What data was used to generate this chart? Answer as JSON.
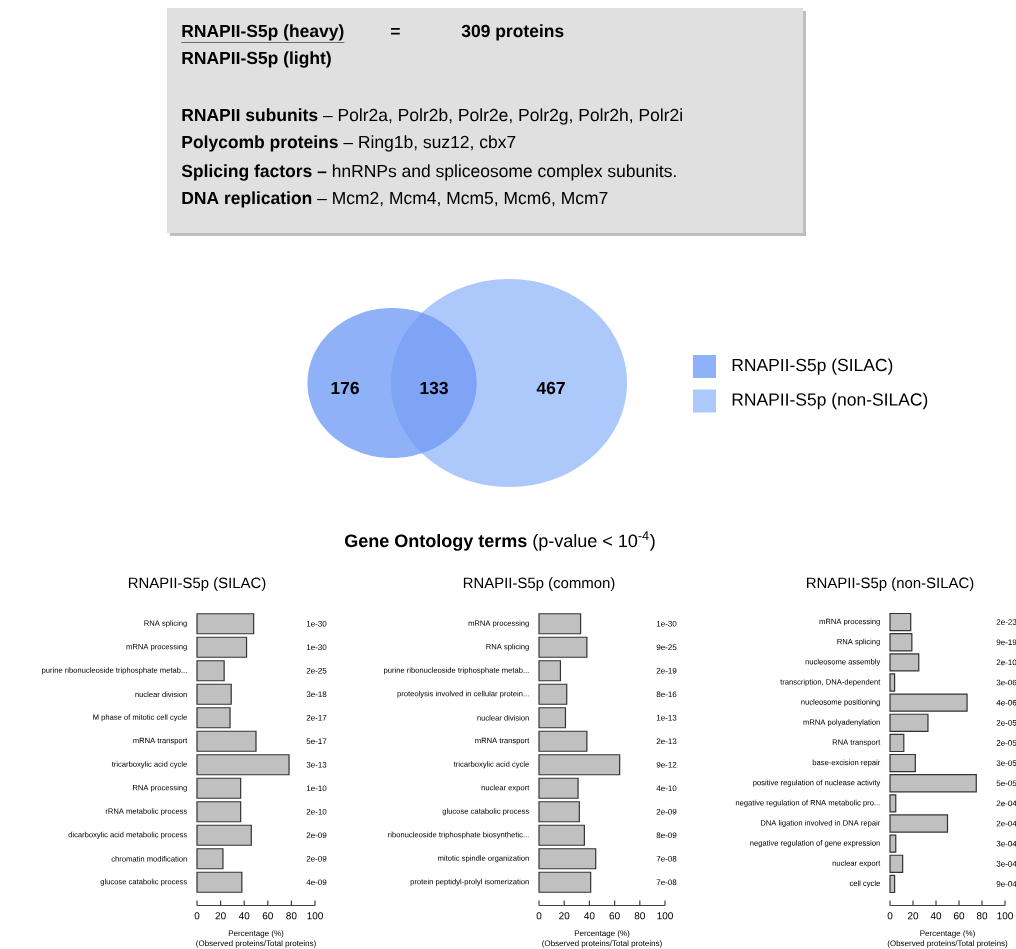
{
  "chart_data": [
    {
      "type": "other",
      "annotations": [
        "RNAPII-S5p (heavy)",
        "=",
        "309 proteins",
        "RNAPII-S5p (light)",
        "**RNAPII subunits** – Polr2a, Polr2b, Polr2e, Polr2g, Polr2h, Polr2i",
        "**Polycomb proteins** – Ring1b, suz12, cbx7",
        "**Splicing factors –** hnRNPs and spliceosome complex subunits.",
        "**DNA replication** – Mcm2, Mcm4, Mcm5, Mcm6, Mcm7"
      ]
    },
    {
      "type": "other",
      "categories": [
        null,
        null,
        null
      ],
      "values": [
        176,
        133,
        467
      ],
      "colors": [
        "#8fb1f7",
        "#7fa3f5",
        "#adc8fb"
      ],
      "data_labels": true,
      "annotations": [
        "RNAPII-S5p (SILAC)",
        "RNAPII-S5p (non-SILAC)"
      ]
    },
    {
      "type": "other",
      "title": "**Gene Ontology terms** (p-value < 10$^{-4}$)"
    },
    {
      "type": "bar",
      "orientation": "horizontal",
      "title": "RNAPII-S5p (SILAC)",
      "xlabel": "Percentage (%)",
      "annotations": [
        "(Observed proteins/Total proteins)",
        "1e-30",
        "1e-30",
        "2e-25",
        "3e-18",
        "2e-17",
        "5e-17",
        "3e-13",
        "1e-10",
        "2e-10",
        "2e-09",
        "2e-09",
        "4e-09"
      ],
      "xlim": [
        0,
        100
      ],
      "xticks": [
        0,
        20,
        40,
        60,
        80,
        100
      ],
      "color": "#c0c0c0",
      "categories": [
        "RNA splicing",
        "mRNA processing",
        "purine ribonucleoside triphosphate metab...",
        "nuclear division",
        "M phase of mitotic cell cycle",
        "mRNA transport",
        "tricarboxylic acid cycle",
        "RNA processing",
        "rRNA metabolic process",
        "dicarboxylic acid metabolic process",
        "chromatin modification",
        "glucose catabolic process"
      ],
      "values": [
        48,
        42,
        23,
        29,
        28,
        50,
        78,
        37,
        37,
        46,
        22,
        38
      ]
    },
    {
      "type": "bar",
      "orientation": "horizontal",
      "title": "RNAPII-S5p (common)",
      "xlabel": "Percentage (%)",
      "annotations": [
        "(Observed proteins/Total proteins)",
        "1e-30",
        "9e-25",
        "2e-19",
        "8e-16",
        "1e-13",
        "2e-13",
        "9e-12",
        "4e-10",
        "2e-09",
        "8e-09",
        "7e-08",
        "7e-08"
      ],
      "xlim": [
        0,
        100
      ],
      "xticks": [
        0,
        20,
        40,
        60,
        80,
        100
      ],
      "color": "#c0c0c0",
      "categories": [
        "mRNA processing",
        "RNA splicing",
        "purine ribonucleoside triphosphate metab...",
        "proteolysis involved in cellular protein...",
        "nuclear division",
        "mRNA transport",
        "tricarboxylic acid cycle",
        "nuclear export",
        "glucose catabolic process",
        "ribonucleoside triphosphate biosynthetic...",
        "mitotic spindle organization",
        "protein peptidyl-prolyl isomerization"
      ],
      "values": [
        33,
        38,
        17,
        22,
        21,
        38,
        64,
        31,
        32,
        36,
        45,
        41
      ]
    },
    {
      "type": "bar",
      "orientation": "horizontal",
      "title": "RNAPII-S5p (non-SILAC)",
      "xlabel": "Percentage (%)",
      "annotations": [
        "(Observed proteins/Total proteins)",
        "2e-23",
        "9e-19",
        "2e-10",
        "3e-06",
        "4e-06",
        "2e-05",
        "2e-05",
        "3e-05",
        "5e-05",
        "2e-04",
        "2e-04",
        "3e-04",
        "3e-04",
        "9e-04"
      ],
      "xlim": [
        0,
        100
      ],
      "xticks": [
        0,
        20,
        40,
        60,
        80,
        100
      ],
      "color": "#c0c0c0",
      "categories": [
        "mRNA processing",
        "RNA splicing",
        "nucleosome assembly",
        "transcription, DNA-dependent",
        "nucleosome positioning",
        "mRNA polyadenylation",
        "RNA transport",
        "base-excision repair",
        "positive regulation of nuclease activity",
        "negative regulation of RNA metabolic pro...",
        "DNA ligation involved in DNA repair",
        "negative regulation of gene expression",
        "nuclear export",
        "cell cycle"
      ],
      "values": [
        18,
        19,
        25,
        4,
        67,
        33,
        12,
        22,
        75,
        5,
        50,
        5,
        11,
        4
      ]
    }
  ]
}
